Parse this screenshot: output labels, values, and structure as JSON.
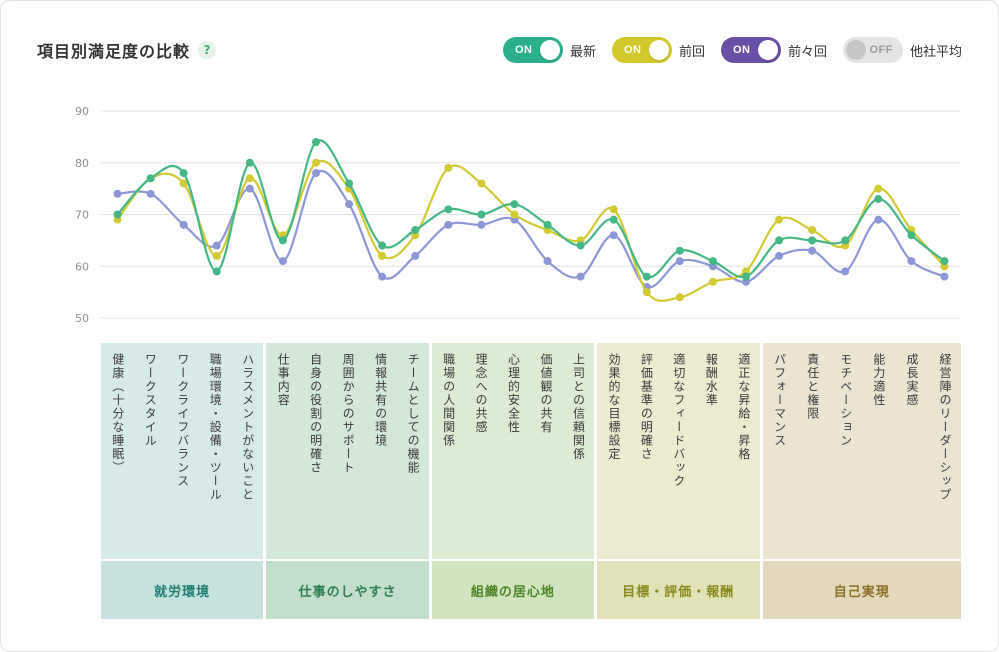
{
  "header": {
    "title": "項目別満足度の比較",
    "help": "?"
  },
  "toggles": [
    {
      "state": "ON",
      "label": "最新",
      "color": "#2bb08c"
    },
    {
      "state": "ON",
      "label": "前回",
      "color": "#d4c72b"
    },
    {
      "state": "ON",
      "label": "前々回",
      "color": "#6a50a4"
    },
    {
      "state": "OFF",
      "label": "他社平均",
      "color": "#e4e4e4"
    }
  ],
  "chart_data": {
    "type": "line",
    "title": "項目別満足度の比較",
    "ylim": [
      50,
      90
    ],
    "yticks": [
      90,
      80,
      70,
      60,
      50
    ],
    "grid": "horizontal",
    "legend_position": "top-right",
    "groups": [
      {
        "name": "就労環境",
        "bg": "#d6ebe8",
        "band": "#c5e2de",
        "text": "#1f7d72",
        "categories": [
          "健康（十分な睡眠）",
          "ワークスタイル",
          "ワークライフバランス",
          "職場環境・設備・ツール",
          "ハラスメントがないこと"
        ]
      },
      {
        "name": "仕事のしやすさ",
        "bg": "#d3e8d9",
        "band": "#c2dfcc",
        "text": "#2f7d4e",
        "categories": [
          "仕事内容",
          "自身の役割の明確さ",
          "周囲からのサポート",
          "情報共有の環境",
          "チームとしての機能"
        ]
      },
      {
        "name": "組織の居心地",
        "bg": "#dcecd2",
        "band": "#cfe4bf",
        "text": "#4c8527",
        "categories": [
          "職場の人間関係",
          "理念への共感",
          "心理的安全性",
          "価値観の共有",
          "上司との信頼関係"
        ]
      },
      {
        "name": "目標・評価・報酬",
        "bg": "#eaebcf",
        "band": "#e1e2b8",
        "text": "#8a8a20",
        "categories": [
          "効果的な目標設定",
          "評価基準の明確さ",
          "適切なフィードバック",
          "報酬水準",
          "適正な昇給・昇格"
        ]
      },
      {
        "name": "自己実現",
        "bg": "#ece4d1",
        "band": "#e3d8bc",
        "text": "#8a6d26",
        "categories": [
          "パフォーマンス",
          "責任と権限",
          "モチベーション",
          "能力適性",
          "成長実感",
          "経営陣のリーダーシップ"
        ]
      }
    ],
    "series": [
      {
        "key": "latest",
        "name": "最新",
        "color": "#45b787",
        "values": [
          70,
          77,
          78,
          59,
          80,
          65,
          84,
          76,
          64,
          67,
          71,
          70,
          72,
          68,
          64,
          69,
          58,
          63,
          61,
          58,
          65,
          65,
          65,
          73,
          66,
          61
        ]
      },
      {
        "key": "previous",
        "name": "前回",
        "color": "#d2ca33",
        "values": [
          69,
          77,
          76,
          62,
          77,
          66,
          80,
          75,
          62,
          66,
          79,
          76,
          70,
          67,
          65,
          71,
          55,
          54,
          57,
          59,
          69,
          67,
          64,
          75,
          67,
          60
        ]
      },
      {
        "key": "previous2",
        "name": "前々回",
        "color": "#8d97d8",
        "values": [
          74,
          74,
          68,
          64,
          75,
          61,
          78,
          72,
          58,
          62,
          68,
          68,
          69,
          61,
          58,
          66,
          56,
          61,
          60,
          57,
          62,
          63,
          59,
          69,
          61,
          58
        ]
      }
    ]
  }
}
